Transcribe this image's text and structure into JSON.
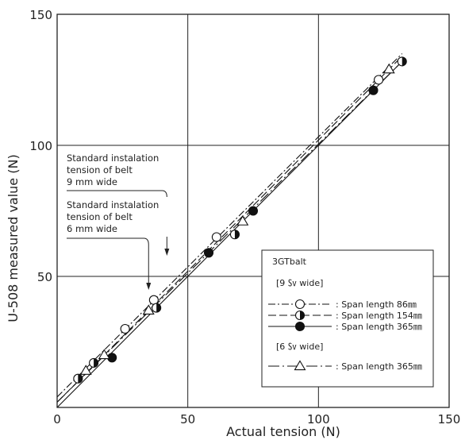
{
  "chart_data": {
    "type": "scatter",
    "title": "",
    "xlabel": "Actual tension (N)",
    "ylabel": "U-508 measured value (N)",
    "xlim": [
      0,
      150
    ],
    "ylim": [
      0,
      150
    ],
    "x_ticks": [
      "0",
      "50",
      "100",
      "150"
    ],
    "y_ticks": [
      "50",
      "100",
      "150"
    ],
    "grid": true,
    "legend_position": "bottom-right",
    "legend": {
      "title": "3GTbalt",
      "group_9mm": "[9 ㏜ wide]",
      "group_6mm": "[6 ㏜ wide]"
    },
    "annotations": [
      {
        "lines": [
          "Standard instalation",
          "tension of belt",
          "9 mm wide"
        ],
        "points_to_x": 42
      },
      {
        "lines": [
          "Standard instalation",
          "tension of belt",
          "6 mm wide"
        ],
        "points_to_x": 35
      }
    ],
    "series": [
      {
        "name": ": Span length 86㎜",
        "marker": "open-circle",
        "line_style": "dashdot",
        "fit": [
          [
            0,
            4
          ],
          [
            132,
            135
          ]
        ],
        "points": [
          [
            26,
            30
          ],
          [
            37,
            41
          ],
          [
            61,
            65
          ],
          [
            123,
            125
          ]
        ]
      },
      {
        "name": ": Span length 154㎜",
        "marker": "half-circle",
        "line_style": "dash",
        "fit": [
          [
            0,
            2
          ],
          [
            132,
            134
          ]
        ],
        "points": [
          [
            8,
            11
          ],
          [
            14,
            17
          ],
          [
            38,
            38
          ],
          [
            68,
            66
          ],
          [
            132,
            132
          ]
        ]
      },
      {
        "name": ": Span length 365㎜",
        "marker": "filled-circle",
        "line_style": "solid",
        "fit": [
          [
            0,
            0
          ],
          [
            132,
            132
          ]
        ],
        "points": [
          [
            21,
            19
          ],
          [
            58,
            59
          ],
          [
            75,
            75
          ],
          [
            121,
            121
          ]
        ]
      },
      {
        "name": ": Span length 365㎜",
        "marker": "open-triangle",
        "line_style": "longdash-dot",
        "fit": [
          [
            0,
            2
          ],
          [
            132,
            132
          ]
        ],
        "points": [
          [
            11,
            14
          ],
          [
            18,
            20
          ],
          [
            35,
            37
          ],
          [
            71,
            71
          ],
          [
            127,
            129
          ]
        ]
      }
    ]
  }
}
